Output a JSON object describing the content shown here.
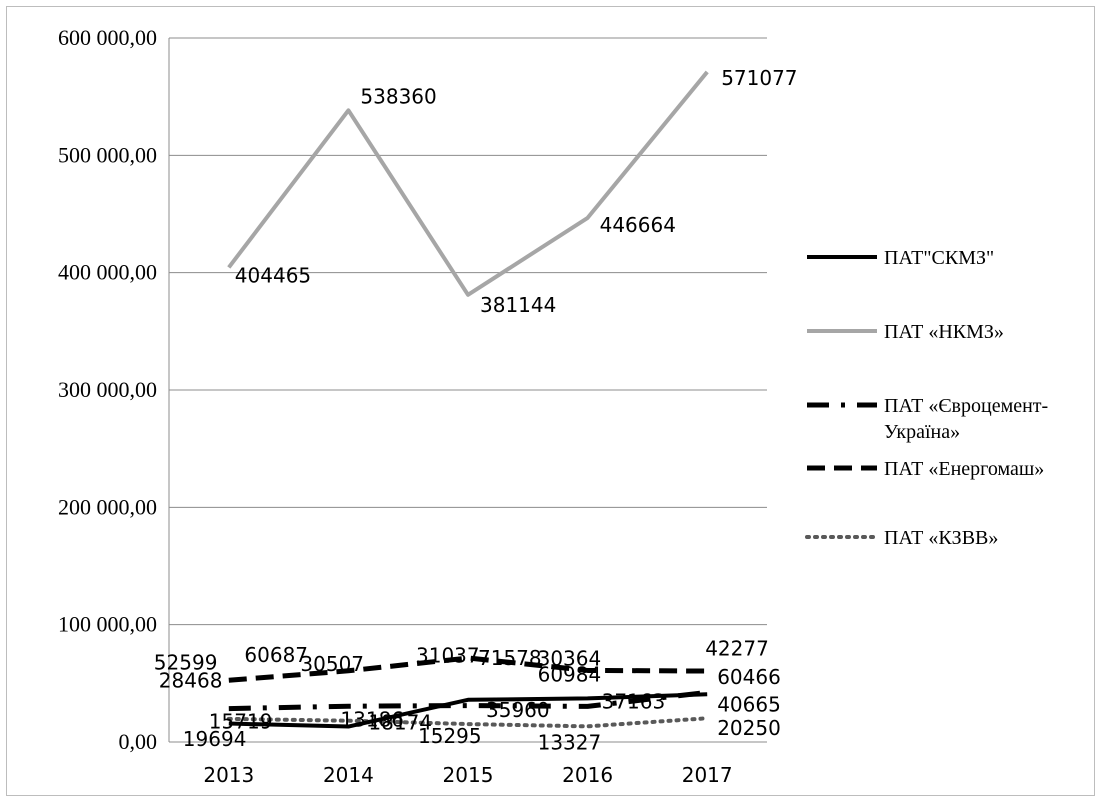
{
  "chart_data": {
    "type": "line",
    "title": "",
    "xlabel": "",
    "ylabel": "",
    "ylim": [
      0,
      600000
    ],
    "y_ticks": [
      "0,00",
      "100 000,00",
      "200 000,00",
      "300 000,00",
      "400 000,00",
      "500 000,00",
      "600 000,00"
    ],
    "y_tick_values": [
      0,
      100000,
      200000,
      300000,
      400000,
      500000,
      600000
    ],
    "categories": [
      "2013",
      "2014",
      "2015",
      "2016",
      "2017"
    ],
    "grid": true,
    "legend_position": "right",
    "series": [
      {
        "name": "ПАТ\"СКМЗ\"",
        "key": "skmz",
        "color": "#000000",
        "style": "solid",
        "values": [
          15719,
          13186,
          35960,
          37163,
          40665
        ],
        "labels": [
          "15719",
          "13186",
          "35960",
          "37163",
          "40665"
        ]
      },
      {
        "name": "ПАТ «НКМЗ»",
        "key": "nkmz",
        "color": "#a6a6a6",
        "style": "solid",
        "values": [
          404465,
          538360,
          381144,
          446664,
          571077
        ],
        "labels": [
          "404465",
          "538360",
          "381144",
          "446664",
          "571077"
        ]
      },
      {
        "name": "ПАТ «Євроцемент-Україна»",
        "name_lines": [
          "ПАТ «Євроцемент-",
          "Україна»"
        ],
        "key": "euro",
        "color": "#000000",
        "style": "dashdot",
        "values": [
          28468,
          30507,
          31037,
          30364,
          42277
        ],
        "labels": [
          "28468",
          "30507",
          "31037",
          "30364",
          "42277"
        ]
      },
      {
        "name": "ПАТ «Енергомаш»",
        "key": "energo",
        "color": "#000000",
        "style": "dash",
        "values": [
          52599,
          60687,
          71578,
          60984,
          60466
        ],
        "labels": [
          "52599",
          "60687",
          "71578",
          "60984",
          "60466"
        ]
      },
      {
        "name": "ПАТ «КЗВВ»",
        "key": "kzvv",
        "color": "#595959",
        "style": "dot",
        "values": [
          19694,
          18174,
          15295,
          13327,
          20250
        ],
        "labels": [
          "19694",
          "18174",
          "15295",
          "13327",
          "20250"
        ]
      }
    ]
  }
}
